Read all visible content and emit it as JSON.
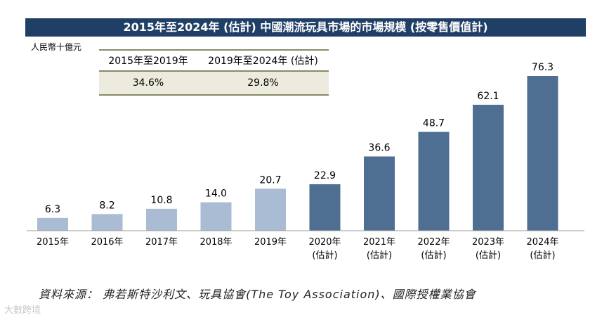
{
  "title": "2015年至2024年 (估計) 中國潮流玩具市場的市場規模 (按零售價值計)",
  "unit": "人民幣十億元",
  "cagr": {
    "headers": [
      "2015年至2019年",
      "2019年至2024年 (估計)"
    ],
    "values": [
      "34.6%",
      "29.8%"
    ]
  },
  "chart_data": {
    "type": "bar",
    "title": "2015年至2024年 (估計) 中國潮流玩具市場的市場規模 (按零售價值計)",
    "ylabel": "人民幣十億元",
    "categories": [
      "2015年",
      "2016年",
      "2017年",
      "2018年",
      "2019年",
      "2020年",
      "2021年",
      "2022年",
      "2023年",
      "2024年"
    ],
    "category_sub": [
      "",
      "",
      "",
      "",
      "",
      "(估計)",
      "(估計)",
      "(估計)",
      "(估計)",
      "(估計)"
    ],
    "values": [
      6.3,
      8.2,
      10.8,
      14.0,
      20.7,
      22.9,
      36.6,
      48.7,
      62.1,
      76.3
    ],
    "value_labels": [
      "6.3",
      "8.2",
      "10.8",
      "14.0",
      "20.7",
      "22.9",
      "36.6",
      "48.7",
      "62.1",
      "76.3"
    ],
    "estimated": [
      false,
      false,
      false,
      false,
      false,
      true,
      true,
      true,
      true,
      true
    ],
    "colors": {
      "actual": "#a9bcd3",
      "estimated": "#4e6e92"
    },
    "ylim": [
      0,
      76.3
    ]
  },
  "source": "資料來源： 弗若斯特沙利文、玩具協會(The Toy Association)、國際授權業協會",
  "watermark": "大數跨境"
}
